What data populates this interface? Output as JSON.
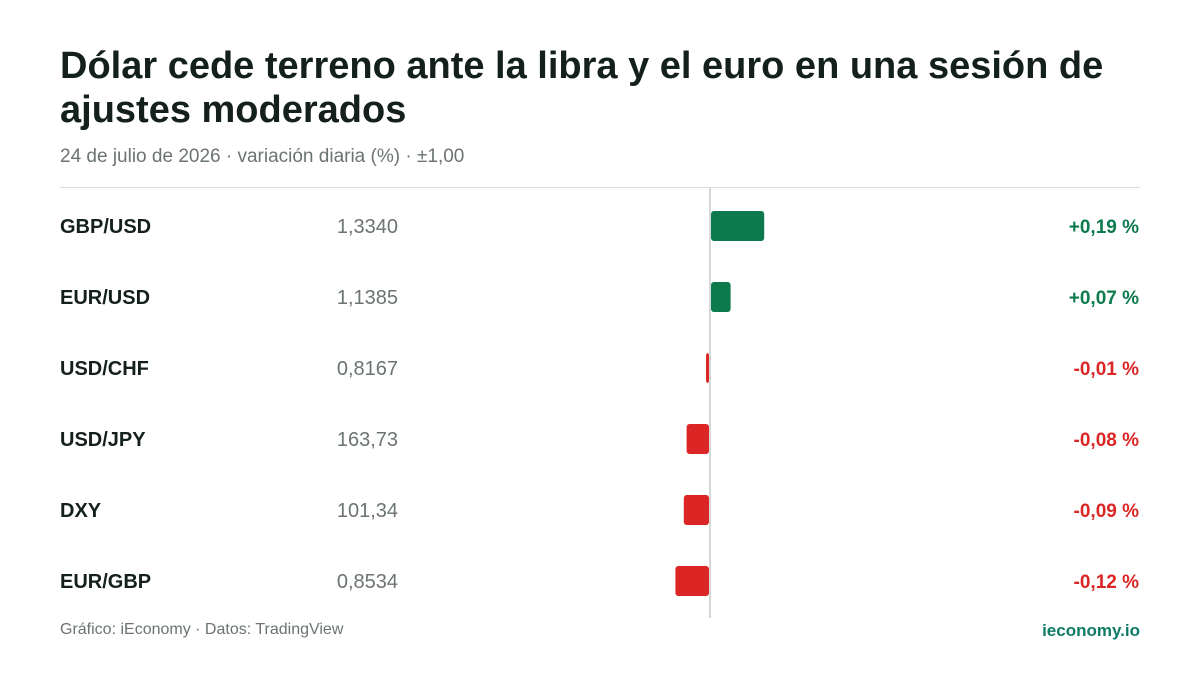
{
  "header": {
    "title": "Dólar cede terreno ante la libra y el euro en una sesión de ajustes moderados",
    "subtitle": "24 de julio de 2026 · variación diaria (%) · ±1,00"
  },
  "footer": {
    "source": "Gráfico: iEconomy · Datos: TradingView",
    "brand": "ieconomy.io"
  },
  "colors": {
    "positive": "#0d7a4e",
    "negative": "#dc2626",
    "axis": "#c9cccb",
    "brand": "#0e7b66"
  },
  "chart_data": {
    "type": "bar",
    "orientation": "horizontal",
    "xlim": [
      -1,
      1
    ],
    "rows": [
      {
        "label": "GBP/USD",
        "price": "1,3340",
        "value": 0.19,
        "change_label": "+0,19 %"
      },
      {
        "label": "EUR/USD",
        "price": "1,1385",
        "value": 0.07,
        "change_label": "+0,07 %"
      },
      {
        "label": "USD/CHF",
        "price": "0,8167",
        "value": -0.01,
        "change_label": "-0,01 %"
      },
      {
        "label": "USD/JPY",
        "price": "163,73",
        "value": -0.08,
        "change_label": "-0,08 %"
      },
      {
        "label": "DXY",
        "price": "101,34",
        "value": -0.09,
        "change_label": "-0,09 %"
      },
      {
        "label": "EUR/GBP",
        "price": "0,8534",
        "value": -0.12,
        "change_label": "-0,12 %"
      }
    ]
  }
}
